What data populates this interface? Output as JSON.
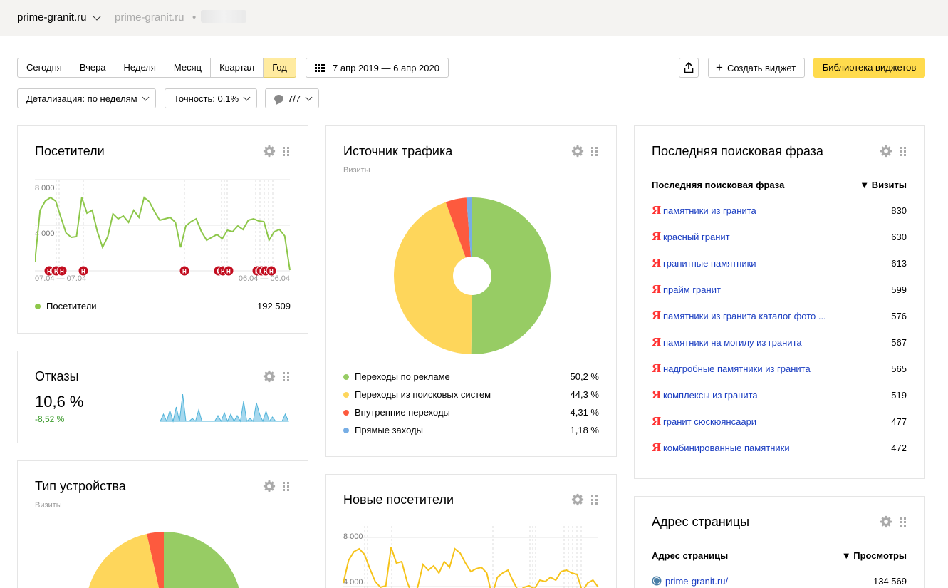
{
  "header": {
    "site": "prime-granit.ru",
    "site_secondary": "prime-granit.ru",
    "separator": "•"
  },
  "periods": {
    "items": [
      "Сегодня",
      "Вчера",
      "Неделя",
      "Месяц",
      "Квартал",
      "Год"
    ],
    "active": "Год"
  },
  "date_range": "7 апр 2019 — 6 апр 2020",
  "toolbar": {
    "create_widget": "Создать виджет",
    "widget_library": "Библиотека виджетов"
  },
  "filters": {
    "detail": "Детализация: по неделям",
    "accuracy": "Точность: 0.1%",
    "annotations": "7/7"
  },
  "visitors": {
    "title": "Посетители",
    "y_ticks": [
      "8 000",
      "4 000"
    ],
    "x_start": "07.04 — 07.04",
    "x_end": "06.04 — 06.04",
    "legend": "Посетители",
    "total": "192 509",
    "color": "#8dc74a"
  },
  "bounces": {
    "title": "Отказы",
    "value": "10,6 %",
    "change": "-8,52 %",
    "color": "#4fb3d9"
  },
  "device": {
    "title": "Тип устройства",
    "subtitle": "Визиты"
  },
  "traffic": {
    "title": "Источник трафика",
    "subtitle": "Визиты",
    "items": [
      {
        "label": "Переходы по рекламе",
        "value": "50,2 %",
        "color": "#97cc64"
      },
      {
        "label": "Переходы из поисковых систем",
        "value": "44,3 %",
        "color": "#fed65b"
      },
      {
        "label": "Внутренние переходы",
        "value": "4,31 %",
        "color": "#fd5a3e"
      },
      {
        "label": "Прямые заходы",
        "value": "1,18 %",
        "color": "#77aee5"
      }
    ]
  },
  "new_visitors": {
    "title": "Новые посетители",
    "y_ticks": [
      "8 000",
      "4 000"
    ],
    "color": "#f6c31a"
  },
  "search_phrase": {
    "title": "Последняя поисковая фраза",
    "col_phrase": "Последняя поисковая фраза",
    "col_visits": "▼ Визиты",
    "rows": [
      {
        "phrase": "памятники из гранита",
        "visits": "830"
      },
      {
        "phrase": "красный гранит",
        "visits": "630"
      },
      {
        "phrase": "гранитные памятники",
        "visits": "613"
      },
      {
        "phrase": "прайм гранит",
        "visits": "599"
      },
      {
        "phrase": "памятники из гранита каталог фото ...",
        "visits": "576"
      },
      {
        "phrase": "памятники на могилу из гранита",
        "visits": "567"
      },
      {
        "phrase": "надгробные памятники из гранита",
        "visits": "565"
      },
      {
        "phrase": "комплексы из гранита",
        "visits": "519"
      },
      {
        "phrase": "гранит сюскюянсаари",
        "visits": "477"
      },
      {
        "phrase": "комбинированные памятники",
        "visits": "472"
      }
    ]
  },
  "page_address": {
    "title": "Адрес страницы",
    "col_page": "Адрес страницы",
    "col_views": "▼ Просмотры",
    "rows": [
      {
        "page": "prime-granit.ru/",
        "views": "134 569"
      }
    ]
  }
}
